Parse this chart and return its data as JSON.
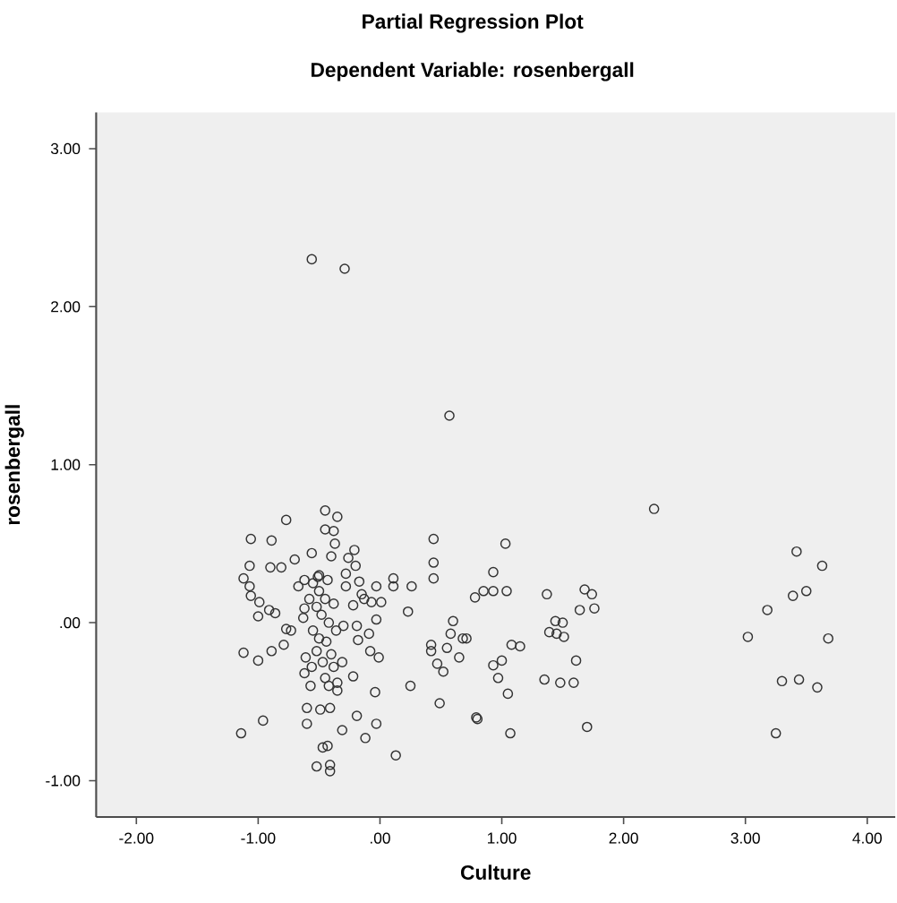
{
  "chart_data": {
    "type": "scatter",
    "title": "Partial Regression Plot",
    "subtitle": "Dependent Variable: rosenbergall",
    "xlabel": "Culture",
    "ylabel": "rosenbergall",
    "color": "#333333",
    "marker": "circle",
    "xlim": [
      -2.33,
      4.23
    ],
    "ylim": [
      -1.23,
      3.23
    ],
    "xticks": [
      {
        "value": -2,
        "label": "-2.00"
      },
      {
        "value": -1,
        "label": "-1.00"
      },
      {
        "value": 0,
        "label": ".00"
      },
      {
        "value": 1,
        "label": "1.00"
      },
      {
        "value": 2,
        "label": "2.00"
      },
      {
        "value": 3,
        "label": "3.00"
      },
      {
        "value": 4,
        "label": "4.00"
      }
    ],
    "yticks": [
      {
        "value": -1,
        "label": "-1.00"
      },
      {
        "value": 0,
        "label": ".00"
      },
      {
        "value": 1,
        "label": "1.00"
      },
      {
        "value": 2,
        "label": "2.00"
      },
      {
        "value": 3,
        "label": "3.00"
      }
    ],
    "x": [
      -0.56,
      -0.29,
      0.57,
      2.25,
      3.42,
      3.63,
      3.39,
      3.5,
      3.18,
      3.02,
      3.68,
      3.3,
      3.44,
      3.59,
      3.25,
      1.03,
      0.93,
      0.78,
      0.85,
      0.93,
      1.04,
      1.37,
      1.68,
      1.74,
      1.64,
      1.76,
      1.44,
      1.5,
      1.39,
      1.45,
      1.51,
      0.71,
      1.08,
      1.15,
      1.0,
      0.93,
      0.97,
      1.61,
      1.35,
      1.48,
      1.59,
      1.05,
      0.8,
      1.07,
      1.7,
      -0.45,
      -0.35,
      -0.77,
      -1.06,
      -0.89,
      -0.45,
      -0.38,
      -0.37,
      0.44,
      -0.56,
      -0.4,
      -0.7,
      -0.21,
      -0.26,
      -1.07,
      -0.9,
      -0.81,
      -0.2,
      0.44,
      0.44,
      -1.12,
      -1.07,
      -1.06,
      -0.67,
      -0.62,
      -0.51,
      -0.28,
      -0.17,
      -0.03,
      0.11,
      0.11,
      0.26,
      -0.28,
      -0.99,
      -1.0,
      -0.91,
      -0.86,
      -0.15,
      -0.13,
      -0.07,
      0.01,
      -0.22,
      0.23,
      -0.62,
      -0.63,
      -0.03,
      -0.3,
      -0.19,
      -0.77,
      -0.73,
      -0.18,
      -0.09,
      0.6,
      0.58,
      0.68,
      -1.12,
      -1.0,
      -0.89,
      -0.79,
      0.42,
      0.42,
      0.55,
      0.65,
      0.47,
      0.52,
      -0.08,
      -0.01,
      -0.31,
      -0.61,
      -0.22,
      -0.62,
      -0.57,
      -0.35,
      -0.04,
      0.25,
      0.49,
      0.79,
      -1.14,
      -0.96,
      -0.6,
      -0.6,
      -0.49,
      -0.41,
      -0.31,
      -0.19,
      -0.12,
      -0.03,
      0.13,
      -0.47,
      -0.43,
      -0.52,
      -0.41,
      -0.41,
      -0.55,
      -0.5,
      -0.45,
      -0.52,
      -0.48,
      -0.42,
      -0.55,
      -0.5,
      -0.44,
      -0.4,
      -0.52,
      -0.47,
      -0.38,
      -0.5,
      -0.43,
      -0.38,
      -0.58,
      -0.36,
      -0.56,
      -0.45,
      -0.42,
      -0.35
    ],
    "values": [
      2.3,
      2.24,
      1.31,
      0.72,
      0.45,
      0.36,
      0.17,
      0.2,
      0.08,
      -0.09,
      -0.1,
      -0.37,
      -0.36,
      -0.41,
      -0.7,
      0.5,
      0.32,
      0.16,
      0.2,
      0.2,
      0.2,
      0.18,
      0.21,
      0.18,
      0.08,
      0.09,
      0.01,
      0.0,
      -0.06,
      -0.07,
      -0.09,
      -0.1,
      -0.14,
      -0.15,
      -0.24,
      -0.27,
      -0.35,
      -0.24,
      -0.36,
      -0.38,
      -0.38,
      -0.45,
      -0.61,
      -0.7,
      -0.66,
      0.71,
      0.67,
      0.65,
      0.53,
      0.52,
      0.59,
      0.58,
      0.5,
      0.53,
      0.44,
      0.42,
      0.4,
      0.46,
      0.41,
      0.36,
      0.35,
      0.35,
      0.36,
      0.38,
      0.28,
      0.28,
      0.23,
      0.17,
      0.23,
      0.27,
      0.29,
      0.31,
      0.26,
      0.23,
      0.28,
      0.23,
      0.23,
      0.23,
      0.13,
      0.04,
      0.08,
      0.06,
      0.18,
      0.15,
      0.13,
      0.13,
      0.11,
      0.07,
      0.09,
      0.03,
      0.02,
      -0.02,
      -0.02,
      -0.04,
      -0.05,
      -0.11,
      -0.07,
      0.01,
      -0.07,
      -0.1,
      -0.19,
      -0.24,
      -0.18,
      -0.14,
      -0.14,
      -0.18,
      -0.16,
      -0.22,
      -0.26,
      -0.31,
      -0.18,
      -0.22,
      -0.25,
      -0.22,
      -0.34,
      -0.32,
      -0.4,
      -0.43,
      -0.44,
      -0.4,
      -0.51,
      -0.6,
      -0.7,
      -0.62,
      -0.54,
      -0.64,
      -0.55,
      -0.54,
      -0.68,
      -0.59,
      -0.73,
      -0.64,
      -0.84,
      -0.79,
      -0.78,
      -0.91,
      -0.9,
      -0.94,
      0.25,
      0.2,
      0.15,
      0.1,
      0.05,
      0.0,
      -0.05,
      -0.1,
      -0.12,
      -0.2,
      -0.18,
      -0.25,
      -0.28,
      0.3,
      0.27,
      0.12,
      0.15,
      -0.05,
      -0.28,
      -0.35,
      -0.4,
      -0.38
    ]
  }
}
